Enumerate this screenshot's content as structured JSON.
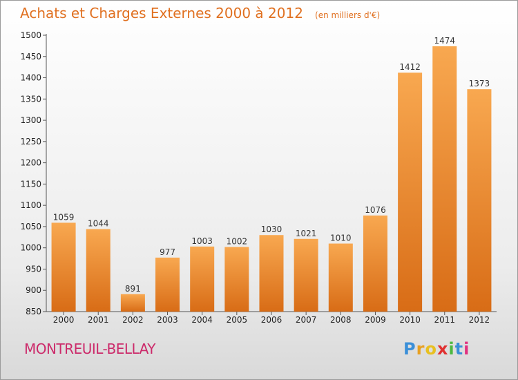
{
  "header": {
    "title": "Achats et Charges Externes 2000 à 2012",
    "subtitle": "(en milliers d'€)"
  },
  "footer": {
    "commune": "MONTREUIL-BELLAY",
    "logo_letters": [
      "P",
      "r",
      "o",
      "x",
      "i",
      "t",
      "i"
    ],
    "logo_colors": [
      "#3a8fd8",
      "#e8a020",
      "#e8c020",
      "#e03030",
      "#4cb840",
      "#3a8fd8",
      "#e03080"
    ]
  },
  "colors": {
    "bar_top": "#f8a850",
    "bar_bottom": "#d86c16",
    "title": "#e07020",
    "commune": "#cc2a6a"
  },
  "chart_data": {
    "type": "bar",
    "title": "Achats et Charges Externes 2000 à 2012",
    "subtitle": "(en milliers d'€)",
    "categories": [
      "2000",
      "2001",
      "2002",
      "2003",
      "2004",
      "2005",
      "2006",
      "2007",
      "2008",
      "2009",
      "2010",
      "2011",
      "2012"
    ],
    "values": [
      1059,
      1044,
      891,
      977,
      1003,
      1002,
      1030,
      1021,
      1010,
      1076,
      1412,
      1474,
      1373
    ],
    "ylim": [
      850,
      1500
    ],
    "yticks": [
      850,
      900,
      950,
      1000,
      1050,
      1100,
      1150,
      1200,
      1250,
      1300,
      1350,
      1400,
      1450,
      1500
    ],
    "grid": false,
    "xlabel": "",
    "ylabel": ""
  }
}
